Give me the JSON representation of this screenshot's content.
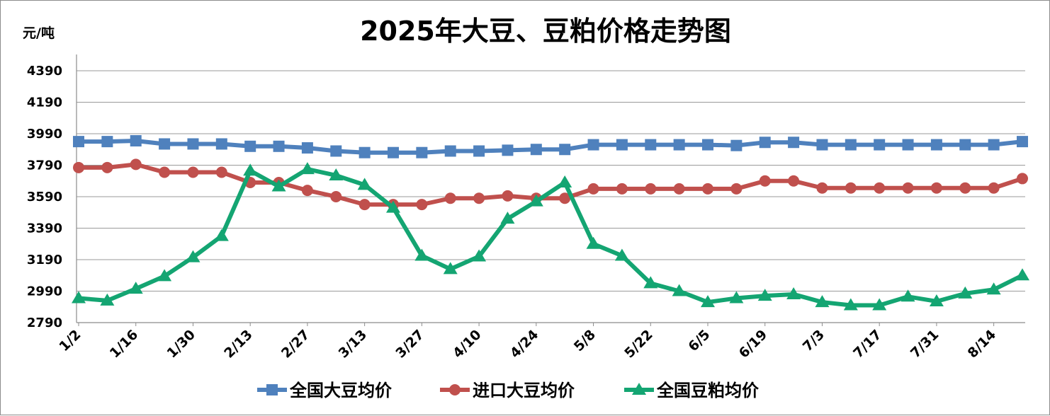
{
  "chart_data": {
    "type": "line",
    "title": "2025年大豆、豆粕价格走势图",
    "ylabel": "元/吨",
    "xlabel": "",
    "ylim": [
      2790,
      4390
    ],
    "yticks": [
      2790,
      2990,
      3190,
      3390,
      3590,
      3790,
      3990,
      4190,
      4390
    ],
    "xtick_labels": [
      "1/2",
      "1/16",
      "1/30",
      "2/13",
      "2/27",
      "3/13",
      "3/27",
      "4/10",
      "4/24",
      "5/8",
      "5/22",
      "6/5",
      "6/19",
      "7/3",
      "7/17",
      "7/31",
      "8/14"
    ],
    "x": [
      "1/2",
      "1/9",
      "1/16",
      "1/23",
      "1/30",
      "2/6",
      "2/13",
      "2/20",
      "2/27",
      "3/6",
      "3/13",
      "3/20",
      "3/27",
      "4/3",
      "4/10",
      "4/17",
      "4/24",
      "5/1",
      "5/8",
      "5/15",
      "5/22",
      "5/29",
      "6/5",
      "6/12",
      "6/19",
      "6/26",
      "7/3",
      "7/10",
      "7/17",
      "7/24",
      "7/31",
      "8/7",
      "8/14",
      "8/21"
    ],
    "grid": true,
    "legend_position": "bottom",
    "series": [
      {
        "name": "全国大豆均价",
        "color": "#4f81bd",
        "marker": "square",
        "values": [
          3940,
          3940,
          3945,
          3925,
          3925,
          3925,
          3910,
          3910,
          3900,
          3880,
          3870,
          3870,
          3870,
          3880,
          3880,
          3885,
          3890,
          3890,
          3920,
          3920,
          3920,
          3920,
          3920,
          3915,
          3935,
          3935,
          3920,
          3920,
          3920,
          3920,
          3920,
          3920,
          3920,
          3940
        ]
      },
      {
        "name": "进口大豆均价",
        "color": "#c0504d",
        "marker": "circle",
        "values": [
          3775,
          3775,
          3795,
          3745,
          3745,
          3745,
          3680,
          3680,
          3630,
          3590,
          3540,
          3540,
          3540,
          3580,
          3580,
          3595,
          3580,
          3580,
          3640,
          3640,
          3640,
          3640,
          3640,
          3640,
          3690,
          3690,
          3645,
          3645,
          3645,
          3645,
          3645,
          3645,
          3645,
          3705
        ]
      },
      {
        "name": "全国豆粕均价",
        "color": "#14a572",
        "marker": "triangle",
        "values": [
          2945,
          2930,
          3005,
          3085,
          3205,
          3340,
          3755,
          3655,
          3765,
          3725,
          3665,
          3520,
          3215,
          3130,
          3210,
          3450,
          3560,
          3680,
          3290,
          3215,
          3040,
          2990,
          2920,
          2945,
          2960,
          2970,
          2920,
          2900,
          2900,
          2955,
          2925,
          2975,
          3000,
          3090
        ]
      }
    ]
  }
}
